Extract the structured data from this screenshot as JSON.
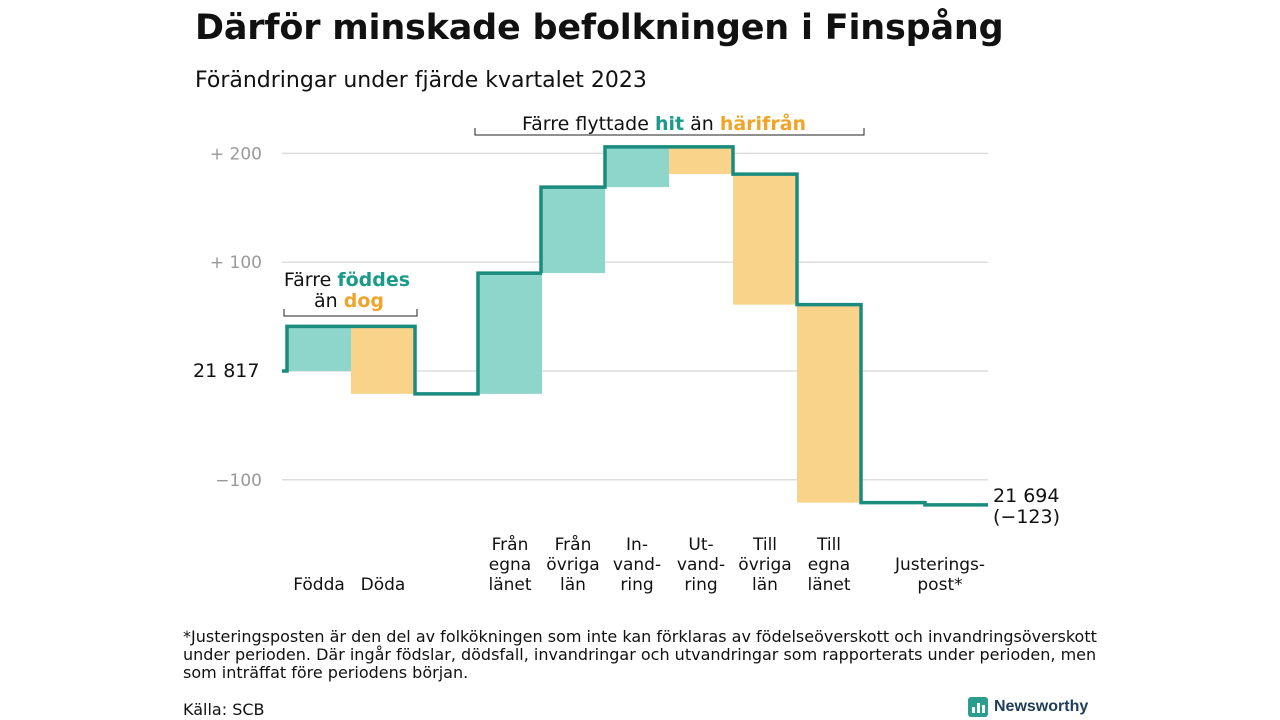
{
  "title": "Därför minskade befolkningen i Finspång",
  "subtitle": "Förändringar under fjärde kvartalet 2023",
  "colors": {
    "increase": "#8ed5cc",
    "decrease": "#fad38a",
    "line": "#1a8c7e",
    "text_green": "#1a9b8a",
    "text_orange": "#f0a52a",
    "grid": "#dddddd",
    "tick": "#999999"
  },
  "chart_data": {
    "type": "waterfall",
    "start_value": 21817,
    "start_label": "21  817",
    "end_label": [
      "21 694",
      "(−123)"
    ],
    "y_ticks": [
      {
        "value": 200,
        "label": "+  200"
      },
      {
        "value": 100,
        "label": "+  100"
      },
      {
        "value": 0,
        "label": ""
      },
      {
        "value": -100,
        "label": "−100"
      }
    ],
    "ylim": [
      -130,
      210
    ],
    "steps": [
      {
        "label": [
          "Födda"
        ],
        "delta": 41
      },
      {
        "label": [
          "Döda"
        ],
        "delta": -62
      },
      {
        "label": [
          "Från",
          "egna",
          "länet"
        ],
        "delta": 111
      },
      {
        "label": [
          "Från",
          "övriga",
          "län"
        ],
        "delta": 79
      },
      {
        "label": [
          "In-",
          "vand-",
          "ring"
        ],
        "delta": 37
      },
      {
        "label": [
          "Ut-",
          "vand-",
          "ring"
        ],
        "delta": -25
      },
      {
        "label": [
          "Till",
          "övriga",
          "län"
        ],
        "delta": -120
      },
      {
        "label": [
          "Till",
          "egna",
          "länet"
        ],
        "delta": -182
      },
      {
        "label": [
          "Justerings-",
          "post*"
        ],
        "delta": -2
      }
    ],
    "annotations": {
      "births": {
        "line1_prefix": "Färre",
        "line1_emph": "föddes",
        "line2_prefix": "än",
        "line2_emph": "dog"
      },
      "moves": {
        "prefix": "Färre flyttade",
        "emph1": "hit",
        "mid": "än",
        "emph2": "härifrån"
      }
    }
  },
  "footnote": "*Justeringsposten är den del av folkökningen som inte kan förklaras av födelseöverskott och invandringsöverskott under perioden. Där ingår födslar, dödsfall, invandringar och utvandringar som rapporterats under perioden, men som inträffat före periodens början.",
  "source": "Källa: SCB",
  "brand": {
    "name": "Newsworthy",
    "icon": "bar-chart-icon"
  }
}
